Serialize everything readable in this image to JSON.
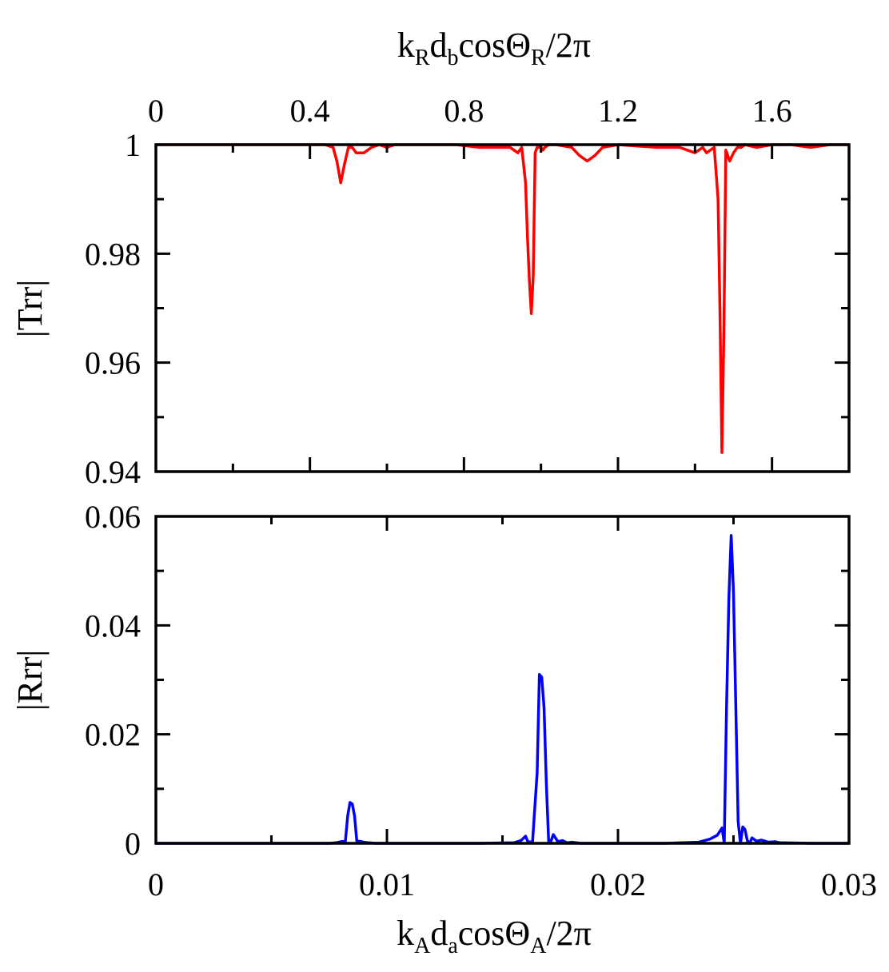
{
  "chart_data": [
    {
      "type": "line",
      "panel": "top",
      "ylabel": "|Trr|",
      "x2label_parts": [
        "k",
        "R",
        "d",
        "b",
        "cosΘ",
        "R",
        "/2π"
      ],
      "x2lim": [
        0,
        1.8
      ],
      "x2ticks": [
        "0",
        "0.4",
        "0.8",
        "1.2",
        "1.6"
      ],
      "x2tick_values": [
        0,
        0.4,
        0.8,
        1.2,
        1.6
      ],
      "ylim": [
        0.94,
        1
      ],
      "yticks": [
        "0.94",
        "0.96",
        "0.98",
        "1"
      ],
      "ytick_values": [
        0.94,
        0.96,
        0.98,
        1
      ],
      "color": "#ff0000",
      "series": [
        {
          "x": [
            0.0,
            0.42,
            0.44,
            0.46,
            0.47,
            0.48,
            0.49,
            0.5,
            0.51,
            0.52,
            0.54,
            0.56,
            0.58,
            0.6,
            0.62,
            0.7,
            0.78,
            0.84,
            0.88,
            0.92,
            0.94,
            0.95,
            0.96,
            0.965,
            0.97,
            0.975,
            0.98,
            0.985,
            0.99,
            1.0,
            1.005,
            1.01,
            1.02,
            1.04,
            1.08,
            1.1,
            1.12,
            1.14,
            1.16,
            1.2,
            1.3,
            1.36,
            1.4,
            1.42,
            1.43,
            1.44,
            1.45,
            1.46,
            1.465,
            1.47,
            1.475,
            1.48,
            1.49,
            1.5,
            1.51,
            1.52,
            1.53,
            1.56,
            1.6,
            1.65,
            1.7,
            1.75,
            1.8
          ],
          "y": [
            1.0,
            1.0,
            1.0,
            0.9995,
            0.997,
            0.993,
            0.9965,
            0.9995,
            0.9995,
            0.9985,
            0.9985,
            0.9995,
            1.0,
            0.9995,
            1.0,
            1.0,
            1.0,
            0.9995,
            0.9995,
            0.9995,
            0.9985,
            0.9995,
            0.993,
            0.983,
            0.975,
            0.969,
            0.976,
            0.9985,
            0.9995,
            0.9995,
            0.999,
            0.9995,
            1.0,
            1.0,
            0.9995,
            0.998,
            0.997,
            0.998,
            0.9995,
            1.0,
            0.9995,
            0.9995,
            0.9985,
            0.9995,
            0.9985,
            0.999,
            0.9995,
            0.99,
            0.969,
            0.9435,
            0.966,
            0.999,
            0.997,
            0.9985,
            0.9995,
            0.9995,
            1.0,
            0.9995,
            1.0,
            1.0,
            0.9995,
            1.0,
            1.0
          ]
        }
      ]
    },
    {
      "type": "line",
      "panel": "bottom",
      "ylabel": "|Rrr|",
      "xlabel_parts": [
        "k",
        "A",
        "d",
        "a",
        "cosΘ",
        "A",
        "/2π"
      ],
      "xlim": [
        0,
        0.03
      ],
      "xticks": [
        "0",
        "0.01",
        "0.02",
        "0.03"
      ],
      "xtick_values": [
        0,
        0.01,
        0.02,
        0.03
      ],
      "ylim": [
        0,
        0.06
      ],
      "yticks": [
        "0",
        "0.02",
        "0.04",
        "0.06"
      ],
      "ytick_values": [
        0,
        0.02,
        0.04,
        0.06
      ],
      "color": "#0000ff",
      "series": [
        {
          "x": [
            0.0,
            0.0075,
            0.0078,
            0.008,
            0.0082,
            0.0083,
            0.0084,
            0.0085,
            0.0086,
            0.0087,
            0.0088,
            0.009,
            0.0092,
            0.0095,
            0.014,
            0.0155,
            0.0158,
            0.016,
            0.0161,
            0.0163,
            0.0165,
            0.0166,
            0.0167,
            0.0168,
            0.0169,
            0.017,
            0.0171,
            0.0172,
            0.0174,
            0.0176,
            0.0178,
            0.018,
            0.0184,
            0.022,
            0.0235,
            0.024,
            0.0243,
            0.0245,
            0.0246,
            0.0247,
            0.0248,
            0.0249,
            0.025,
            0.0251,
            0.0252,
            0.0253,
            0.0254,
            0.0255,
            0.0256,
            0.0257,
            0.0258,
            0.026,
            0.0262,
            0.0265,
            0.0268,
            0.027,
            0.0285,
            0.03
          ],
          "y": [
            0.0,
            0.0,
            0.0001,
            0.0003,
            0.0004,
            0.005,
            0.0075,
            0.0072,
            0.005,
            0.0003,
            0.0004,
            0.0002,
            0.0001,
            0.0,
            0.0,
            0.0001,
            0.0005,
            0.0013,
            0.0003,
            0.0002,
            0.013,
            0.031,
            0.0305,
            0.025,
            0.011,
            0.0003,
            0.0004,
            0.0016,
            0.0003,
            0.0005,
            0.0001,
            0.0002,
            0.0,
            0.0,
            0.0002,
            0.0008,
            0.0015,
            0.0028,
            0.0001,
            0.025,
            0.045,
            0.0565,
            0.046,
            0.025,
            0.004,
            0.0,
            0.003,
            0.0025,
            0.0005,
            0.0,
            0.001,
            0.0004,
            0.0006,
            0.0002,
            0.0003,
            0.0001,
            0.0,
            0.0
          ]
        }
      ]
    }
  ]
}
